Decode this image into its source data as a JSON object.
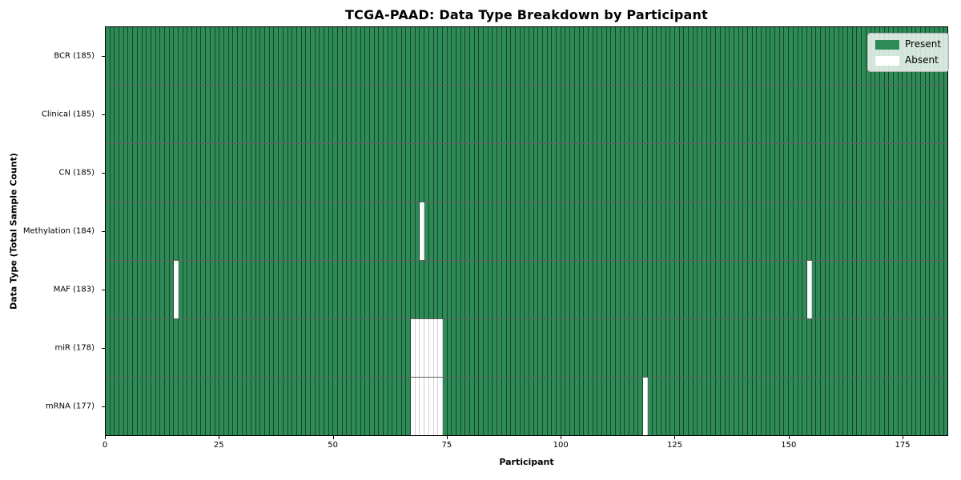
{
  "title": "TCGA-PAAD: Data Type Breakdown by Participant",
  "xlabel": "Participant",
  "ylabel": "Data Type (Total Sample Count)",
  "legend": {
    "present_label": "Present",
    "absent_label": "Absent"
  },
  "colors": {
    "present": "#2e8b57",
    "absent": "#ffffff"
  },
  "chart_data": {
    "type": "heatmap",
    "title": "TCGA-PAAD: Data Type Breakdown by Participant",
    "xlabel": "Participant",
    "ylabel": "Data Type (Total Sample Count)",
    "n_participants": 185,
    "x_range": [
      0,
      185
    ],
    "x_ticks": [
      0,
      25,
      50,
      75,
      100,
      125,
      150,
      175
    ],
    "legend_entries": [
      "Present",
      "Absent"
    ],
    "legend_position": "upper right",
    "grid": true,
    "cell_values": "1 = present (green), 0 = absent (white)",
    "rows": [
      {
        "data_type": "BCR",
        "total_samples": 185,
        "label": "BCR (185)",
        "absent_participants": []
      },
      {
        "data_type": "Clinical",
        "total_samples": 185,
        "label": "Clinical (185)",
        "absent_participants": []
      },
      {
        "data_type": "CN",
        "total_samples": 185,
        "label": "CN (185)",
        "absent_participants": []
      },
      {
        "data_type": "Methylation",
        "total_samples": 184,
        "label": "Methylation (184)",
        "absent_participants": [
          69
        ]
      },
      {
        "data_type": "MAF",
        "total_samples": 183,
        "label": "MAF (183)",
        "absent_participants": [
          15,
          154
        ]
      },
      {
        "data_type": "miR",
        "total_samples": 178,
        "label": "miR (178)",
        "absent_participants": [
          67,
          68,
          69,
          70,
          71,
          72,
          73
        ]
      },
      {
        "data_type": "mRNA",
        "total_samples": 177,
        "label": "mRNA (177)",
        "absent_participants": [
          67,
          68,
          69,
          70,
          71,
          72,
          73,
          118
        ]
      }
    ]
  }
}
